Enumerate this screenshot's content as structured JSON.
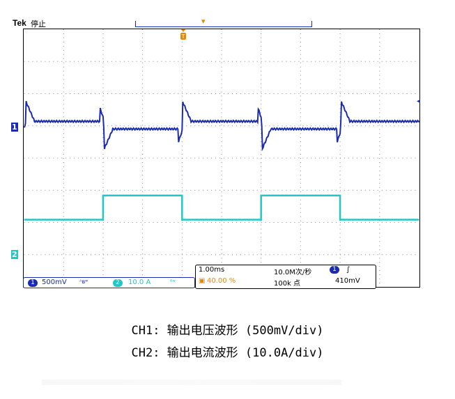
{
  "scope": {
    "brand": "Tek",
    "status": "停止",
    "trigger_marker": "T",
    "ch1_marker": "1",
    "ch2_marker": "2",
    "colors": {
      "ch1": "#1a2bb0",
      "ch2": "#21c6c6",
      "trigger": "#e58a00"
    }
  },
  "readout": {
    "ch1_badge": "1",
    "ch1_scale": "500mV",
    "ch1_coupling": "ᴬʙʷ",
    "ch2_badge": "2",
    "ch2_scale": "10.0 A",
    "ch2_coupling": "ᴮʷ",
    "timebase": "1.00ms",
    "sample_rate": "10.0M次/秒",
    "trig_badge": "1",
    "trig_slope": "∫",
    "trig_pos": "40.00 %",
    "record_len": "100k 点",
    "trig_level": "410mV"
  },
  "caption": {
    "line1": "CH1: 输出电压波形 (500mV/div)",
    "line2": "CH2: 输出电流波形 (10.0A/div)"
  }
}
